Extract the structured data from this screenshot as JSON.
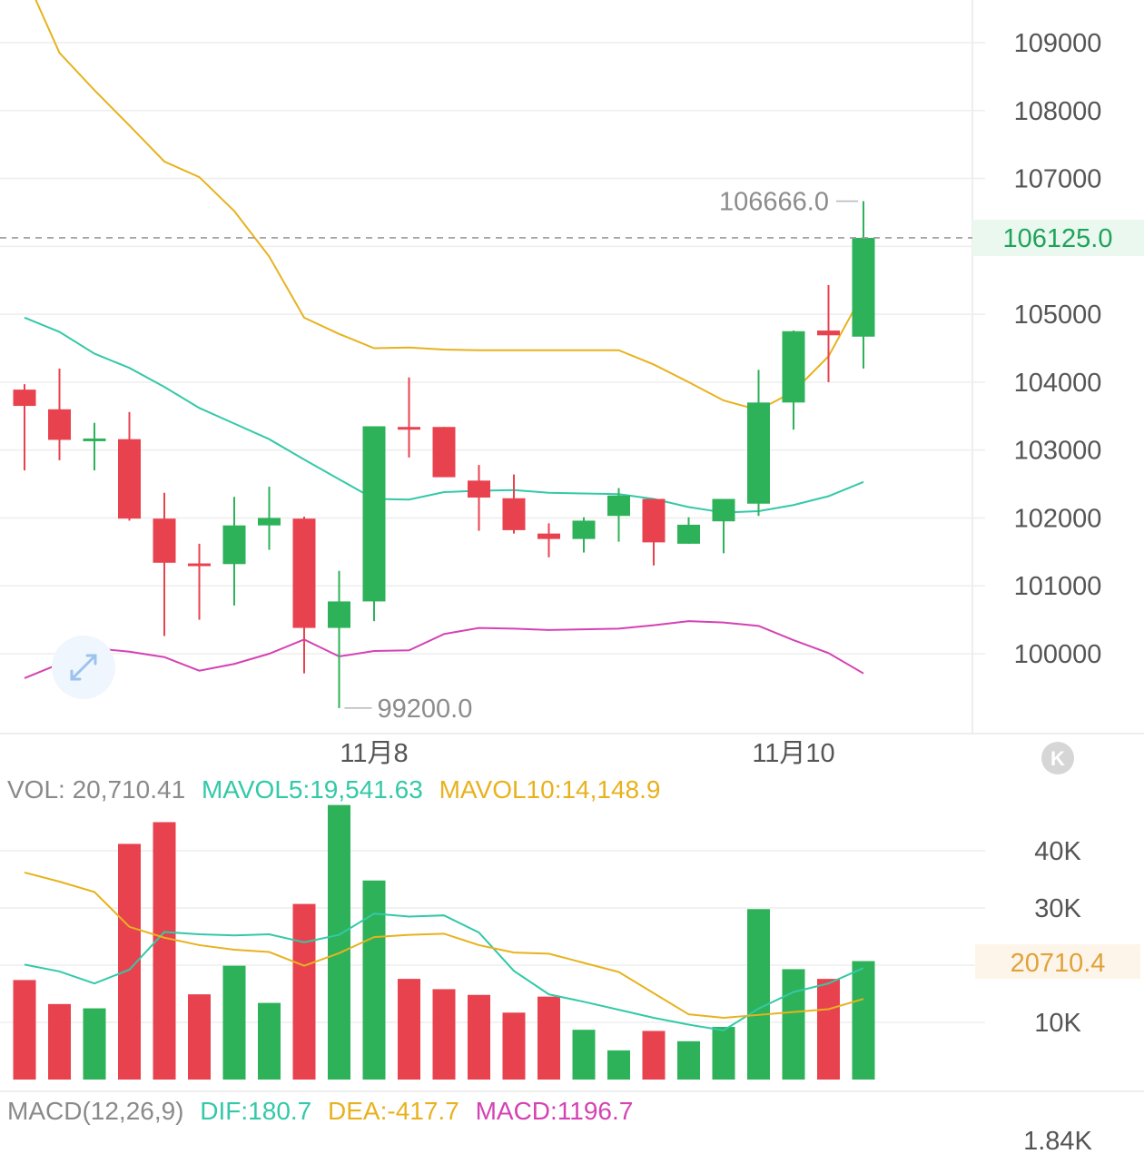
{
  "colors": {
    "up": "#2db259",
    "down": "#e8424f",
    "ma_yellow": "#e8b21e",
    "ma_teal": "#33c9a8",
    "ma_pink": "#d442b4",
    "grid": "#eeeeee",
    "current_green": "#1fa35a",
    "vol_badge": "#e0a23b"
  },
  "chart_data": [
    {
      "type": "candlestick",
      "y_ticks": [
        109000,
        108000,
        107000,
        106000,
        105000,
        104000,
        103000,
        102000,
        101000,
        100000
      ],
      "y_tick_labels": [
        "109000",
        "108000",
        "107000",
        "105000",
        "104000",
        "103000",
        "102000",
        "101000",
        "100000"
      ],
      "x_date_labels": [
        {
          "text": "11月8",
          "index": 10
        },
        {
          "text": "11月10",
          "index": 22
        }
      ],
      "current_price": 106125.0,
      "current_price_label": "106125.0",
      "high_label": "106666.0",
      "high_value": 106666.0,
      "high_index": 24,
      "low_label": "99200.0",
      "low_value": 99200.0,
      "low_index": 9,
      "candles": [
        {
          "open": 103890,
          "high": 103970,
          "low": 102700,
          "close": 103650,
          "dir": "down"
        },
        {
          "open": 103600,
          "high": 104200,
          "low": 102850,
          "close": 103150,
          "dir": "down"
        },
        {
          "open": 103150,
          "high": 103400,
          "low": 102700,
          "close": 103170,
          "dir": "up"
        },
        {
          "open": 103160,
          "high": 103560,
          "low": 101960,
          "close": 101990,
          "dir": "down"
        },
        {
          "open": 101990,
          "high": 102370,
          "low": 100260,
          "close": 101340,
          "dir": "down"
        },
        {
          "open": 101330,
          "high": 101620,
          "low": 100500,
          "close": 101310,
          "dir": "down"
        },
        {
          "open": 101320,
          "high": 102310,
          "low": 100710,
          "close": 101890,
          "dir": "up"
        },
        {
          "open": 101890,
          "high": 102460,
          "low": 101530,
          "close": 102000,
          "dir": "up"
        },
        {
          "open": 101990,
          "high": 102020,
          "low": 99710,
          "close": 100380,
          "dir": "down"
        },
        {
          "open": 100380,
          "high": 101220,
          "low": 99200,
          "close": 100770,
          "dir": "up"
        },
        {
          "open": 100770,
          "high": 103350,
          "low": 100480,
          "close": 103350,
          "dir": "up"
        },
        {
          "open": 103340,
          "high": 104070,
          "low": 102890,
          "close": 103310,
          "dir": "down"
        },
        {
          "open": 103340,
          "high": 103340,
          "low": 102640,
          "close": 102600,
          "dir": "down"
        },
        {
          "open": 102550,
          "high": 102780,
          "low": 101810,
          "close": 102300,
          "dir": "down"
        },
        {
          "open": 102290,
          "high": 102640,
          "low": 101770,
          "close": 101820,
          "dir": "down"
        },
        {
          "open": 101770,
          "high": 101920,
          "low": 101420,
          "close": 101690,
          "dir": "down"
        },
        {
          "open": 101690,
          "high": 102010,
          "low": 101490,
          "close": 101960,
          "dir": "up"
        },
        {
          "open": 102030,
          "high": 102440,
          "low": 101650,
          "close": 102330,
          "dir": "up"
        },
        {
          "open": 102280,
          "high": 102280,
          "low": 101300,
          "close": 101640,
          "dir": "down"
        },
        {
          "open": 101620,
          "high": 102010,
          "low": 101620,
          "close": 101900,
          "dir": "up"
        },
        {
          "open": 101950,
          "high": 102260,
          "low": 101480,
          "close": 102280,
          "dir": "up"
        },
        {
          "open": 102210,
          "high": 104180,
          "low": 102030,
          "close": 103700,
          "dir": "up"
        },
        {
          "open": 103700,
          "high": 104760,
          "low": 103300,
          "close": 104750,
          "dir": "up"
        },
        {
          "open": 104760,
          "high": 105430,
          "low": 104000,
          "close": 104690,
          "dir": "down"
        },
        {
          "open": 104670,
          "high": 106666,
          "low": 104200,
          "close": 106125,
          "dir": "up"
        }
      ],
      "ma_yellow": [
        110000,
        108850,
        108300,
        107780,
        107250,
        107020,
        106520,
        105850,
        104950,
        104710,
        104500,
        104510,
        104480,
        104470,
        104470,
        104470,
        104470,
        104470,
        104260,
        104000,
        103730,
        103590,
        103860,
        104380,
        105320
      ],
      "ma_teal": [
        104950,
        104740,
        104420,
        104210,
        103930,
        103620,
        103390,
        103160,
        102860,
        102570,
        102280,
        102270,
        102380,
        102400,
        102410,
        102370,
        102360,
        102350,
        102280,
        102160,
        102080,
        102100,
        102190,
        102320,
        102530
      ],
      "ma_pink": [
        99640,
        99850,
        100080,
        100030,
        99950,
        99750,
        99850,
        100000,
        100210,
        99960,
        100040,
        100050,
        100290,
        100380,
        100370,
        100350,
        100360,
        100370,
        100420,
        100480,
        100460,
        100410,
        100200,
        100010,
        99710
      ]
    },
    {
      "type": "bar",
      "series_label_vol": "VOL: 20,710.41",
      "series_label_mavol5": "MAVOL5:19,541.63",
      "series_label_mavol10": "MAVOL10:14,148.9",
      "y_ticks": [
        40000,
        30000,
        10000
      ],
      "y_tick_labels": [
        "40K",
        "30K",
        "10K"
      ],
      "current_value_label": "20710.4",
      "volumes": [
        17400,
        13200,
        12450,
        41200,
        45000,
        14900,
        19900,
        13400,
        30700,
        48000,
        34800,
        17600,
        15800,
        14800,
        11700,
        14500,
        8700,
        5100,
        8500,
        6700,
        9200,
        29800,
        19300,
        17600,
        20710
      ],
      "dirs": [
        "down",
        "down",
        "up",
        "down",
        "down",
        "down",
        "up",
        "up",
        "down",
        "up",
        "up",
        "down",
        "down",
        "down",
        "down",
        "down",
        "up",
        "up",
        "down",
        "up",
        "up",
        "up",
        "up",
        "down",
        "up"
      ],
      "mavol5": [
        20100,
        18900,
        16800,
        19200,
        25800,
        25400,
        25200,
        25400,
        24000,
        25300,
        29000,
        28500,
        28700,
        25700,
        19000,
        14900,
        13600,
        12200,
        10800,
        9600,
        8600,
        12400,
        15300,
        16800,
        19500
      ],
      "mavol10": [
        36200,
        34600,
        32800,
        26700,
        24800,
        23500,
        22700,
        22300,
        19900,
        22100,
        24900,
        25300,
        25500,
        23500,
        22200,
        22000,
        20400,
        18800,
        15100,
        11400,
        10800,
        11300,
        11800,
        12300,
        14100
      ]
    },
    {
      "type": "line",
      "label_macd": "MACD(12,26,9)",
      "label_dif": "DIF:180.7",
      "label_dea": "DEA:-417.7",
      "label_macd_val": "MACD:1196.7",
      "y_tick_labels": [
        "1.84K"
      ]
    }
  ]
}
